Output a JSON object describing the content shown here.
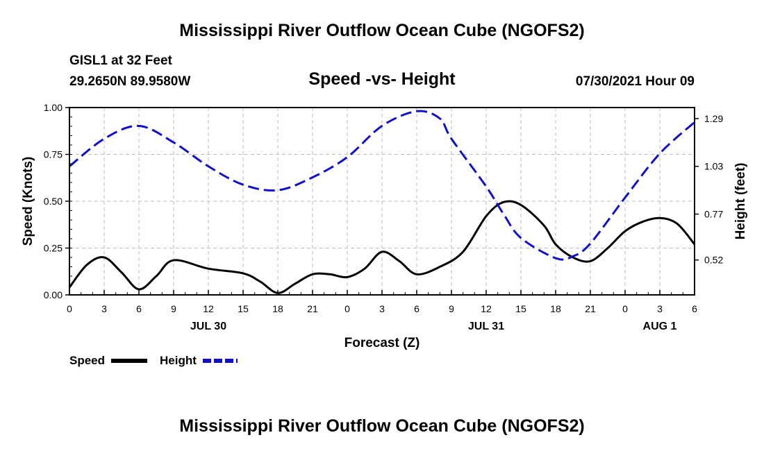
{
  "header": {
    "title": "Mississippi River Outflow Ocean Cube (NGOFS2)",
    "station": "GISL1 at 32 Feet",
    "location": "29.2650N  89.9580W",
    "datetime": "07/30/2021 Hour 09",
    "footer_title": "Mississippi River Outflow Ocean Cube (NGOFS2)"
  },
  "colors": {
    "speed": "#000000",
    "height": "#1010cc",
    "grid": "#bbbbbb"
  },
  "chart_data": {
    "type": "line",
    "title": "Speed -vs- Height",
    "xlabel": "Forecast (Z)",
    "ylabel": "Speed (Knots)",
    "y2label": "Height (feet)",
    "xlim": [
      0,
      54
    ],
    "ylim": [
      0,
      1.0
    ],
    "y2lim": [
      0.33,
      1.35
    ],
    "yticks": [
      0,
      0.25,
      0.5,
      0.75,
      1.0
    ],
    "ytick_labels": [
      "0.00",
      "0.25",
      "0.50",
      "0.75",
      "1.00"
    ],
    "y2ticks": [
      0.52,
      0.77,
      1.03,
      1.29
    ],
    "y2tick_labels": [
      "0.52",
      "0.77",
      "1.03",
      "1.29"
    ],
    "xticks": [
      0,
      3,
      6,
      9,
      12,
      15,
      18,
      21,
      24,
      27,
      30,
      33,
      36,
      39,
      42,
      45,
      48,
      51,
      54
    ],
    "xtick_labels": [
      "0",
      "3",
      "6",
      "9",
      "12",
      "15",
      "18",
      "21",
      "0",
      "3",
      "6",
      "9",
      "12",
      "15",
      "18",
      "21",
      "0",
      "3",
      "6"
    ],
    "date_labels": [
      {
        "x": 12,
        "label": "JUL 30"
      },
      {
        "x": 36,
        "label": "JUL 31"
      },
      {
        "x": 51,
        "label": "AUG 1"
      }
    ],
    "legend": [
      "Speed",
      "Height"
    ],
    "series": [
      {
        "name": "Speed",
        "axis": "left",
        "style": "solid",
        "x": [
          0,
          1.5,
          3,
          4.5,
          6,
          7.5,
          9,
          12,
          15,
          16.5,
          18,
          19.5,
          21,
          22.5,
          24,
          25.5,
          27,
          28.5,
          30,
          32,
          34,
          36,
          37.5,
          39,
          41,
          42,
          43.5,
          45,
          46.5,
          48,
          49.5,
          51,
          52.5,
          54
        ],
        "values": [
          0.04,
          0.16,
          0.2,
          0.12,
          0.03,
          0.1,
          0.185,
          0.14,
          0.115,
          0.07,
          0.01,
          0.06,
          0.11,
          0.11,
          0.095,
          0.14,
          0.23,
          0.18,
          0.11,
          0.15,
          0.23,
          0.42,
          0.495,
          0.48,
          0.37,
          0.27,
          0.2,
          0.18,
          0.25,
          0.34,
          0.39,
          0.41,
          0.38,
          0.27
        ]
      },
      {
        "name": "Height",
        "axis": "right",
        "style": "dashed",
        "x": [
          0,
          3,
          6,
          9,
          12,
          15,
          18,
          21,
          24,
          27,
          30,
          32,
          33,
          36,
          37.5,
          39,
          42,
          43.5,
          45,
          48,
          51,
          54
        ],
        "values": [
          1.03,
          1.18,
          1.25,
          1.16,
          1.03,
          0.93,
          0.9,
          0.97,
          1.08,
          1.25,
          1.33,
          1.29,
          1.18,
          0.92,
          0.77,
          0.64,
          0.53,
          0.54,
          0.61,
          0.86,
          1.1,
          1.27
        ]
      }
    ]
  }
}
